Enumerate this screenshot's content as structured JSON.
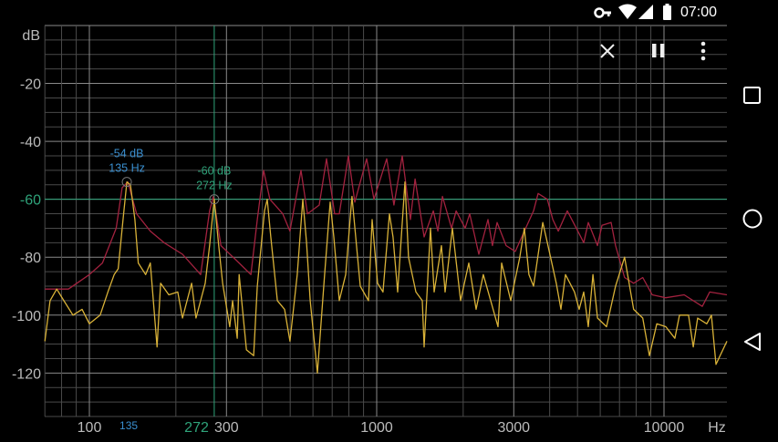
{
  "status_bar": {
    "time": "07:00",
    "icons": [
      "vpn-key-icon",
      "wifi-icon",
      "cellular-signal-icon",
      "battery-icon"
    ]
  },
  "toolbar": {
    "icons": [
      "close-icon",
      "pause-icon",
      "more-vert-icon"
    ]
  },
  "nav_bar": {
    "icons": [
      "recents-square-icon",
      "home-circle-icon",
      "back-triangle-icon"
    ]
  },
  "colors": {
    "live": "#d9b238",
    "peak_hold": "#a3223f",
    "marker_peak": "#3a8fd0",
    "cursor": "#2fa37a",
    "grid": "#4a4a4a",
    "grid_major": "#8a8a8a"
  },
  "chart_data": {
    "type": "line",
    "xscale": "log",
    "xlim": [
      70,
      16500
    ],
    "ylim": [
      -135,
      0
    ],
    "ylabel": "dB",
    "xlabel": "Hz",
    "grid": true,
    "yticks": [
      {
        "value": -20,
        "label": "-20"
      },
      {
        "value": -40,
        "label": "-40"
      },
      {
        "value": -60,
        "label": "-60"
      },
      {
        "value": -80,
        "label": "-80"
      },
      {
        "value": -100,
        "label": "-100"
      },
      {
        "value": -120,
        "label": "-120"
      }
    ],
    "xticks": [
      {
        "value": 100,
        "label": "100"
      },
      {
        "value": 300,
        "label": "300"
      },
      {
        "value": 1000,
        "label": "1000"
      },
      {
        "value": 3000,
        "label": "3000"
      },
      {
        "value": 10000,
        "label": "10000"
      }
    ],
    "peak_marker": {
      "freq": 135,
      "db": -54,
      "db_label": "-54 dB",
      "freq_label": "135 Hz",
      "axis_label": "135"
    },
    "cursor": {
      "freq": 272,
      "db": -60,
      "db_label": "-60 dB",
      "freq_label": "272 Hz",
      "axis_label": "272"
    },
    "series": [
      {
        "role": "peak-hold",
        "color": "#a3223f",
        "points": [
          [
            70,
            -91
          ],
          [
            84.5,
            -91
          ],
          [
            100,
            -86
          ],
          [
            111,
            -82
          ],
          [
            124,
            -70
          ],
          [
            130,
            -56
          ],
          [
            136,
            -54
          ],
          [
            146,
            -65
          ],
          [
            163,
            -71
          ],
          [
            182,
            -75
          ],
          [
            211,
            -79
          ],
          [
            244,
            -86
          ],
          [
            262,
            -64
          ],
          [
            270,
            -59
          ],
          [
            287,
            -76
          ],
          [
            332,
            -82
          ],
          [
            365,
            -86
          ],
          [
            384,
            -67
          ],
          [
            404,
            -50
          ],
          [
            425,
            -60
          ],
          [
            471,
            -65
          ],
          [
            499,
            -71
          ],
          [
            545,
            -50
          ],
          [
            574,
            -65
          ],
          [
            631,
            -62
          ],
          [
            669,
            -46
          ],
          [
            714,
            -65
          ],
          [
            741,
            -65
          ],
          [
            797,
            -45
          ],
          [
            839,
            -61
          ],
          [
            923,
            -46
          ],
          [
            978,
            -60
          ],
          [
            1084,
            -46
          ],
          [
            1148,
            -62
          ],
          [
            1227,
            -45
          ],
          [
            1311,
            -67
          ],
          [
            1360,
            -53
          ],
          [
            1462,
            -73
          ],
          [
            1574,
            -64
          ],
          [
            1633,
            -71
          ],
          [
            1694,
            -59
          ],
          [
            1822,
            -70
          ],
          [
            1890,
            -64
          ],
          [
            2032,
            -70
          ],
          [
            2108,
            -65
          ],
          [
            2268,
            -79
          ],
          [
            2439,
            -67
          ],
          [
            2529,
            -76
          ],
          [
            2624,
            -68
          ],
          [
            2822,
            -76
          ],
          [
            3037,
            -78
          ],
          [
            3266,
            -71
          ],
          [
            3515,
            -64
          ],
          [
            3648,
            -58
          ],
          [
            3926,
            -60
          ],
          [
            4102,
            -67
          ],
          [
            4285,
            -71
          ],
          [
            4609,
            -64
          ],
          [
            4955,
            -70
          ],
          [
            5256,
            -75
          ],
          [
            5453,
            -68
          ],
          [
            5870,
            -76
          ],
          [
            6081,
            -69
          ],
          [
            6546,
            -68
          ],
          [
            6784,
            -76
          ],
          [
            7294,
            -87
          ],
          [
            7842,
            -89
          ],
          [
            8431,
            -87
          ],
          [
            9100,
            -93
          ],
          [
            10150,
            -94
          ],
          [
            11750,
            -93
          ],
          [
            12640,
            -95
          ],
          [
            13590,
            -97
          ],
          [
            14420,
            -92
          ],
          [
            16560,
            -93
          ]
        ]
      },
      {
        "role": "live",
        "color": "#d9b238",
        "points": [
          [
            70,
            -109
          ],
          [
            73,
            -95
          ],
          [
            77,
            -91
          ],
          [
            81.5,
            -95
          ],
          [
            87.7,
            -100
          ],
          [
            94.3,
            -98
          ],
          [
            100,
            -103
          ],
          [
            109,
            -100
          ],
          [
            116,
            -92
          ],
          [
            122,
            -86
          ],
          [
            126,
            -84
          ],
          [
            131,
            -67
          ],
          [
            135,
            -54
          ],
          [
            139,
            -55
          ],
          [
            144,
            -67
          ],
          [
            148,
            -82
          ],
          [
            157,
            -86
          ],
          [
            163,
            -82
          ],
          [
            172,
            -111
          ],
          [
            177,
            -89
          ],
          [
            189,
            -93
          ],
          [
            203,
            -92
          ],
          [
            211,
            -101
          ],
          [
            227,
            -89
          ],
          [
            235,
            -101
          ],
          [
            253,
            -89
          ],
          [
            262,
            -76
          ],
          [
            272,
            -60
          ],
          [
            282,
            -76
          ],
          [
            291,
            -89
          ],
          [
            308,
            -104
          ],
          [
            315,
            -95
          ],
          [
            327,
            -108
          ],
          [
            332,
            -86
          ],
          [
            352,
            -112
          ],
          [
            373,
            -114
          ],
          [
            384,
            -90
          ],
          [
            407,
            -64
          ],
          [
            416,
            -60
          ],
          [
            428,
            -73
          ],
          [
            451,
            -95
          ],
          [
            478,
            -98
          ],
          [
            499,
            -109
          ],
          [
            529,
            -86
          ],
          [
            553,
            -60
          ],
          [
            570,
            -75
          ],
          [
            587,
            -95
          ],
          [
            622,
            -120
          ],
          [
            659,
            -86
          ],
          [
            689,
            -61
          ],
          [
            709,
            -73
          ],
          [
            741,
            -95
          ],
          [
            780,
            -86
          ],
          [
            820,
            -59
          ],
          [
            845,
            -73
          ],
          [
            877,
            -90
          ],
          [
            936,
            -95
          ],
          [
            964,
            -67
          ],
          [
            1007,
            -89
          ],
          [
            1052,
            -92
          ],
          [
            1108,
            -65
          ],
          [
            1140,
            -73
          ],
          [
            1183,
            -92
          ],
          [
            1254,
            -54
          ],
          [
            1291,
            -80
          ],
          [
            1369,
            -92
          ],
          [
            1441,
            -95
          ],
          [
            1462,
            -111
          ],
          [
            1539,
            -70
          ],
          [
            1585,
            -92
          ],
          [
            1680,
            -76
          ],
          [
            1730,
            -92
          ],
          [
            1834,
            -70
          ],
          [
            1959,
            -95
          ],
          [
            2092,
            -82
          ],
          [
            2218,
            -98
          ],
          [
            2350,
            -86
          ],
          [
            2494,
            -95
          ],
          [
            2643,
            -104
          ],
          [
            2722,
            -82
          ],
          [
            2929,
            -95
          ],
          [
            3148,
            -80
          ],
          [
            3266,
            -70
          ],
          [
            3388,
            -86
          ],
          [
            3515,
            -90
          ],
          [
            3784,
            -68
          ],
          [
            3926,
            -75
          ],
          [
            4218,
            -89
          ],
          [
            4377,
            -98
          ],
          [
            4541,
            -86
          ],
          [
            4883,
            -92
          ],
          [
            5066,
            -98
          ],
          [
            5256,
            -92
          ],
          [
            5453,
            -104
          ],
          [
            5658,
            -86
          ],
          [
            5870,
            -101
          ],
          [
            6310,
            -104
          ],
          [
            6784,
            -90
          ],
          [
            7294,
            -80
          ],
          [
            7842,
            -98
          ],
          [
            8431,
            -101
          ],
          [
            8896,
            -114
          ],
          [
            9440,
            -103
          ],
          [
            10150,
            -104
          ],
          [
            10910,
            -108
          ],
          [
            11320,
            -100
          ],
          [
            12170,
            -100
          ],
          [
            12640,
            -111
          ],
          [
            13100,
            -101
          ],
          [
            14090,
            -103
          ],
          [
            14620,
            -100
          ],
          [
            15170,
            -117
          ],
          [
            16560,
            -109
          ]
        ]
      }
    ]
  }
}
